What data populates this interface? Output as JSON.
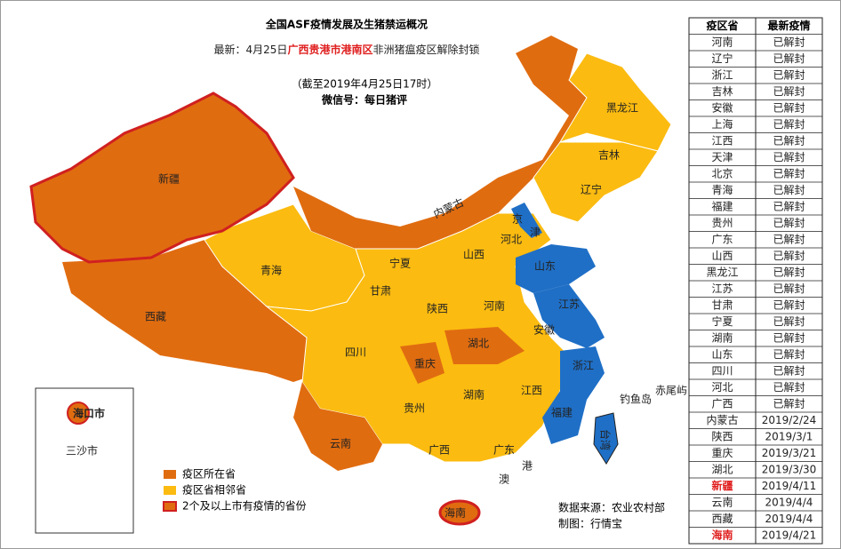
{
  "header": {
    "title": "全国ASF疫情发展及生猪禁运概况",
    "subtitle_lead": "最新：4月25日",
    "subtitle_place": "广西贵港市港南区",
    "subtitle_tail": "非洲猪瘟疫区解除封锁",
    "as_of": "（截至2019年4月25日17时）",
    "wechat": "微信号：每日猪评"
  },
  "map": {
    "labels": [
      "新疆",
      "西藏",
      "青海",
      "甘肃",
      "宁夏",
      "内蒙古",
      "黑龙江",
      "吉林",
      "辽宁",
      "京",
      "津",
      "河北",
      "山西",
      "山东",
      "陕西",
      "河南",
      "江苏",
      "安徽",
      "湖北",
      "四川",
      "重庆",
      "浙江",
      "湖南",
      "江西",
      "福建",
      "贵州",
      "云南",
      "广西",
      "广东",
      "台湾",
      "海南",
      "澳",
      "港"
    ],
    "inset": [
      "海口市",
      "三沙市"
    ],
    "extras": [
      "钓鱼岛",
      "赤尾屿"
    ]
  },
  "legend": [
    "疫区所在省",
    "疫区省相邻省",
    "2个及以上市有疫情的省份"
  ],
  "source": [
    "数据来源：农业农村部",
    "制图：行情宝"
  ],
  "table": {
    "header": [
      "疫区省",
      "最新疫情"
    ],
    "rows": [
      [
        "河南",
        "已解封"
      ],
      [
        "辽宁",
        "已解封"
      ],
      [
        "浙江",
        "已解封"
      ],
      [
        "吉林",
        "已解封"
      ],
      [
        "安徽",
        "已解封"
      ],
      [
        "上海",
        "已解封"
      ],
      [
        "江西",
        "已解封"
      ],
      [
        "天津",
        "已解封"
      ],
      [
        "北京",
        "已解封"
      ],
      [
        "青海",
        "已解封"
      ],
      [
        "福建",
        "已解封"
      ],
      [
        "贵州",
        "已解封"
      ],
      [
        "广东",
        "已解封"
      ],
      [
        "山西",
        "已解封"
      ],
      [
        "黑龙江",
        "已解封"
      ],
      [
        "江苏",
        "已解封"
      ],
      [
        "甘肃",
        "已解封"
      ],
      [
        "宁夏",
        "已解封"
      ],
      [
        "湖南",
        "已解封"
      ],
      [
        "山东",
        "已解封"
      ],
      [
        "四川",
        "已解封"
      ],
      [
        "河北",
        "已解封"
      ],
      [
        "广西",
        "已解封"
      ],
      [
        "内蒙古",
        "2019/2/24"
      ],
      [
        "陕西",
        "2019/3/1"
      ],
      [
        "重庆",
        "2019/3/21"
      ],
      [
        "湖北",
        "2019/3/30"
      ],
      [
        "新疆",
        "2019/4/11"
      ],
      [
        "云南",
        "2019/4/4"
      ],
      [
        "西藏",
        "2019/4/4"
      ],
      [
        "海南",
        "2019/4/21"
      ]
    ],
    "highlight_rows": [
      27,
      30
    ]
  }
}
